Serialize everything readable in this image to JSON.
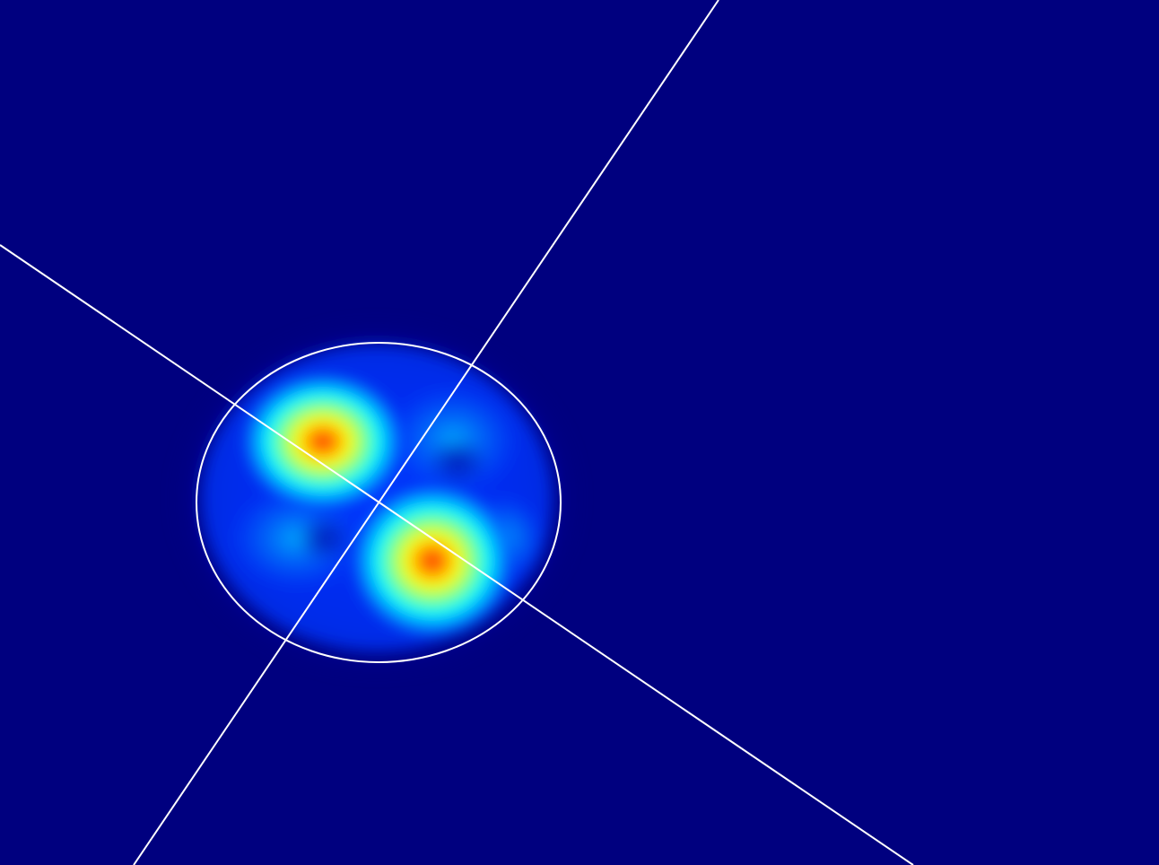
{
  "colors": {
    "background": "#00007f",
    "overlay": "#ffffff",
    "colormap": "jet",
    "jet_stops": [
      "#00007f",
      "#0000ff",
      "#0080ff",
      "#00ffff",
      "#80ff80",
      "#ffff00",
      "#ff8000",
      "#ff0000"
    ]
  },
  "image": {
    "kind": "laser beam intensity profile",
    "mode_lobes": 2,
    "overlays": [
      "fit-ellipse",
      "major-axis-line",
      "minor-axis-line"
    ]
  }
}
